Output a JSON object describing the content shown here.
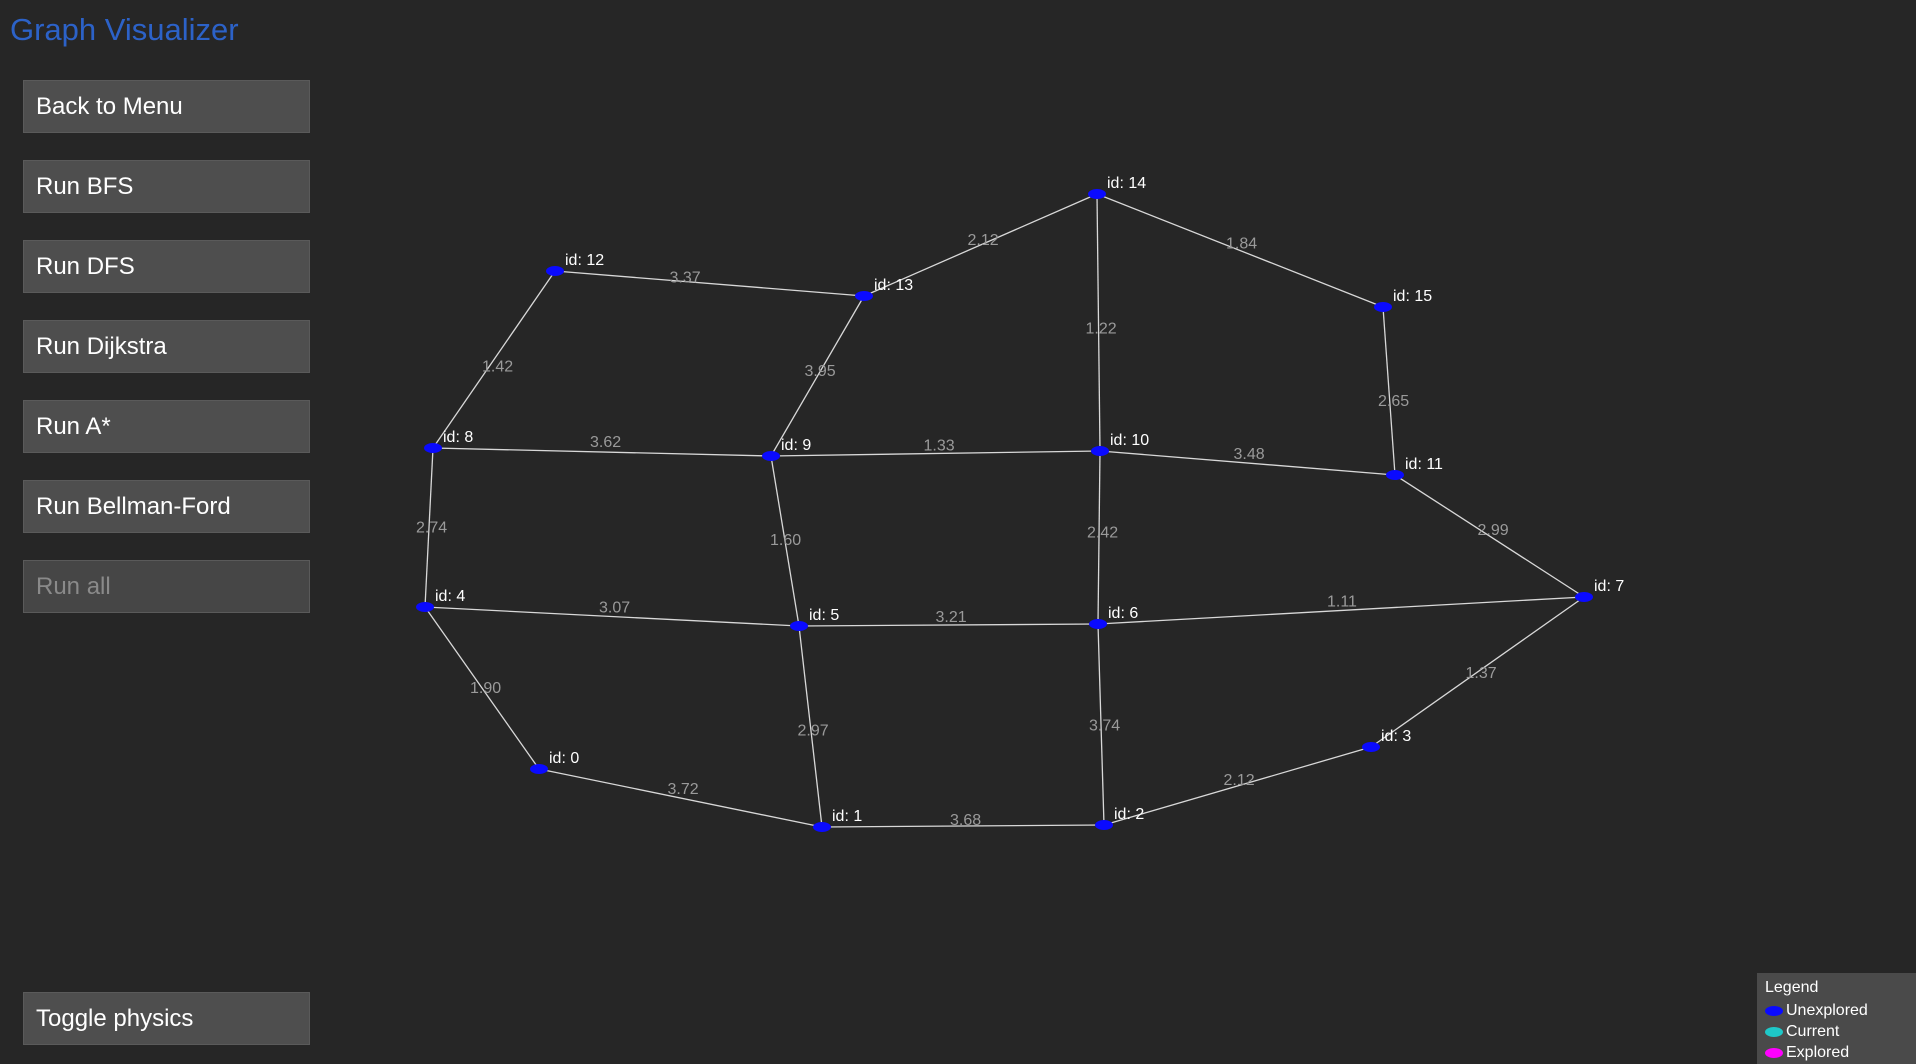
{
  "app": {
    "title": "Graph Visualizer"
  },
  "buttons": {
    "back": "Back to Menu",
    "bfs": "Run BFS",
    "dfs": "Run DFS",
    "dijkstra": "Run Dijkstra",
    "astar": "Run A*",
    "bellman_ford": "Run Bellman-Ford",
    "run_all": "Run all",
    "toggle_physics": "Toggle physics"
  },
  "colors": {
    "background": "#262626",
    "title": "#2c62c8",
    "node_unexplored": "#0a0aff",
    "node_current": "#1ec8c8",
    "node_explored": "#ff00ff",
    "start_label": "#e02020"
  },
  "graph": {
    "start_node": 0,
    "nodes": [
      {
        "id": 0,
        "label": "id: 0"
      },
      {
        "id": 1,
        "label": "id: 1"
      },
      {
        "id": 2,
        "label": "id: 2"
      },
      {
        "id": 3,
        "label": "id: 3"
      },
      {
        "id": 4,
        "label": "id: 4"
      },
      {
        "id": 5,
        "label": "id: 5"
      },
      {
        "id": 6,
        "label": "id: 6"
      },
      {
        "id": 7,
        "label": "id: 7"
      },
      {
        "id": 8,
        "label": "id: 8"
      },
      {
        "id": 9,
        "label": "id: 9"
      },
      {
        "id": 10,
        "label": "id: 10"
      },
      {
        "id": 11,
        "label": "id: 11"
      },
      {
        "id": 12,
        "label": "id: 12"
      },
      {
        "id": 13,
        "label": "id: 13"
      },
      {
        "id": 14,
        "label": "id: 14"
      },
      {
        "id": 15,
        "label": "id: 15"
      }
    ],
    "edges": [
      {
        "from": 12,
        "to": 13,
        "weight": "3.37"
      },
      {
        "from": 13,
        "to": 14,
        "weight": "2.12"
      },
      {
        "from": 14,
        "to": 15,
        "weight": "1.84"
      },
      {
        "from": 14,
        "to": 10,
        "weight": "1.22"
      },
      {
        "from": 12,
        "to": 8,
        "weight": "1.42"
      },
      {
        "from": 13,
        "to": 9,
        "weight": "3.95"
      },
      {
        "from": 15,
        "to": 11,
        "weight": "2.65"
      },
      {
        "from": 8,
        "to": 9,
        "weight": "3.62"
      },
      {
        "from": 9,
        "to": 10,
        "weight": "1.33"
      },
      {
        "from": 10,
        "to": 11,
        "weight": "3.48"
      },
      {
        "from": 8,
        "to": 4,
        "weight": "2.74"
      },
      {
        "from": 9,
        "to": 5,
        "weight": "1.60"
      },
      {
        "from": 10,
        "to": 6,
        "weight": "2.42"
      },
      {
        "from": 11,
        "to": 7,
        "weight": "2.99"
      },
      {
        "from": 4,
        "to": 5,
        "weight": "3.07"
      },
      {
        "from": 5,
        "to": 6,
        "weight": "3.21"
      },
      {
        "from": 6,
        "to": 7,
        "weight": "1.11"
      },
      {
        "from": 4,
        "to": 0,
        "weight": "1.90"
      },
      {
        "from": 5,
        "to": 1,
        "weight": "2.97"
      },
      {
        "from": 6,
        "to": 2,
        "weight": "3.74"
      },
      {
        "from": 7,
        "to": 3,
        "weight": "1.37"
      },
      {
        "from": 0,
        "to": 1,
        "weight": "3.72"
      },
      {
        "from": 1,
        "to": 2,
        "weight": "3.68"
      },
      {
        "from": 2,
        "to": 3,
        "weight": "2.12"
      }
    ]
  },
  "legend": {
    "title": "Legend",
    "items": [
      {
        "label": "Unexplored",
        "color": "#0a0aff"
      },
      {
        "label": "Current",
        "color": "#1ec8c8"
      },
      {
        "label": "Explored",
        "color": "#ff00ff"
      }
    ]
  }
}
